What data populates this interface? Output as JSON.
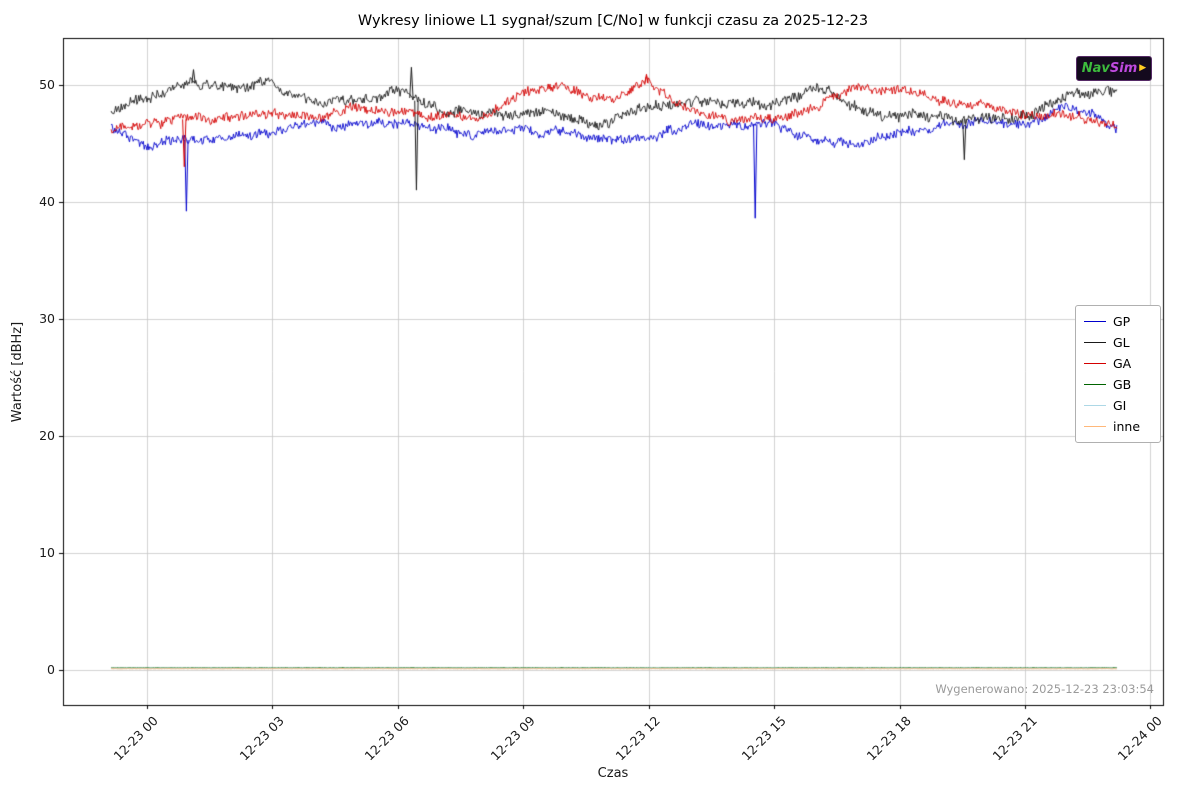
{
  "watermark": "Wygenerowano: 2025-12-23 23:03:54",
  "logo": {
    "text_left": "Nav",
    "text_right": "Sim",
    "arrow_icon": "▶"
  },
  "chart_data": {
    "type": "line",
    "title": "Wykresy liniowe L1 sygnał/szum [C/No] w funkcji czasu za 2025-12-23",
    "xlabel": "Czas",
    "ylabel": "Wartość [dBHz]",
    "grid": true,
    "legend_position": "center right",
    "xlim": [
      -2,
      24.3
    ],
    "ylim": [
      -3,
      54
    ],
    "x_ticks": [
      {
        "value": 0,
        "label": "12-23 00"
      },
      {
        "value": 3,
        "label": "12-23 03"
      },
      {
        "value": 6,
        "label": "12-23 06"
      },
      {
        "value": 9,
        "label": "12-23 09"
      },
      {
        "value": 12,
        "label": "12-23 12"
      },
      {
        "value": 15,
        "label": "12-23 15"
      },
      {
        "value": 18,
        "label": "12-23 18"
      },
      {
        "value": 21,
        "label": "12-23 21"
      },
      {
        "value": 24,
        "label": "12-24 00"
      }
    ],
    "y_ticks": [
      0,
      10,
      20,
      30,
      40,
      50
    ],
    "series": [
      {
        "name": "GP",
        "color": "#0000cd",
        "noise": 0.35,
        "x": [
          -0.85,
          0,
          1,
          2,
          3,
          4,
          5,
          6,
          7,
          8,
          9,
          10,
          11,
          12,
          13,
          14,
          15,
          16,
          17,
          18,
          19,
          20,
          21,
          22,
          23.2
        ],
        "y": [
          46.3,
          44.9,
          45.3,
          45.6,
          45.9,
          46.7,
          46.4,
          46.6,
          46.1,
          45.9,
          46.1,
          45.9,
          45.3,
          45.5,
          46.6,
          46.3,
          46.9,
          45.3,
          44.9,
          45.6,
          46.6,
          46.9,
          46.3,
          48.3,
          46.3
        ],
        "spikes": [
          {
            "x": 0.95,
            "y": 39.2
          },
          {
            "x": 14.55,
            "y": 38.6
          }
        ]
      },
      {
        "name": "GL",
        "color": "#1a1a1a",
        "noise": 0.4,
        "x": [
          -0.85,
          0,
          1,
          2,
          3,
          4,
          5,
          6,
          7,
          8,
          9,
          10,
          11,
          12,
          13,
          14,
          15,
          16,
          17,
          18,
          19,
          20,
          21,
          22,
          23.2
        ],
        "y": [
          47.6,
          48.8,
          50.2,
          49.6,
          49.9,
          48.5,
          48.7,
          49.5,
          47.6,
          47.3,
          47.5,
          47.3,
          46.8,
          47.9,
          48.5,
          48.3,
          48.3,
          50.0,
          47.7,
          47.5,
          47.2,
          47.0,
          47.3,
          49.0,
          49.4
        ],
        "spikes": [
          {
            "x": 1.12,
            "y": 51.3
          },
          {
            "x": 6.33,
            "y": 51.5
          },
          {
            "x": 6.45,
            "y": 41.0
          },
          {
            "x": 19.55,
            "y": 43.6
          }
        ]
      },
      {
        "name": "GA",
        "color": "#d40000",
        "noise": 0.35,
        "x": [
          -0.85,
          0,
          1,
          2,
          3,
          4,
          5,
          6,
          7,
          8,
          9,
          10,
          11,
          12,
          13,
          14,
          15,
          16,
          17,
          18,
          19,
          20,
          21,
          22,
          23.2
        ],
        "y": [
          46.2,
          46.6,
          47.1,
          47.3,
          47.6,
          47.4,
          48.2,
          47.8,
          47.3,
          47.4,
          49.3,
          49.8,
          48.6,
          50.2,
          48.0,
          47.0,
          47.1,
          48.0,
          50.0,
          49.4,
          48.5,
          48.0,
          47.3,
          47.5,
          46.9
        ],
        "spikes": [
          {
            "x": 0.9,
            "y": 43.0
          },
          {
            "x": 11.95,
            "y": 50.9
          }
        ]
      },
      {
        "name": "GB",
        "color": "#006400",
        "noise": 0.02,
        "x": [
          -0.85,
          23.2
        ],
        "y": [
          0.18,
          0.18
        ],
        "spikes": []
      },
      {
        "name": "GI",
        "color": "#add8e6",
        "noise": 0.02,
        "x": [
          -0.85,
          23.2
        ],
        "y": [
          0.14,
          0.14
        ],
        "spikes": []
      },
      {
        "name": "inne",
        "color": "#ffb87a",
        "noise": 0.02,
        "x": [
          -0.85,
          23.2
        ],
        "y": [
          0.1,
          0.1
        ],
        "spikes": []
      }
    ]
  }
}
